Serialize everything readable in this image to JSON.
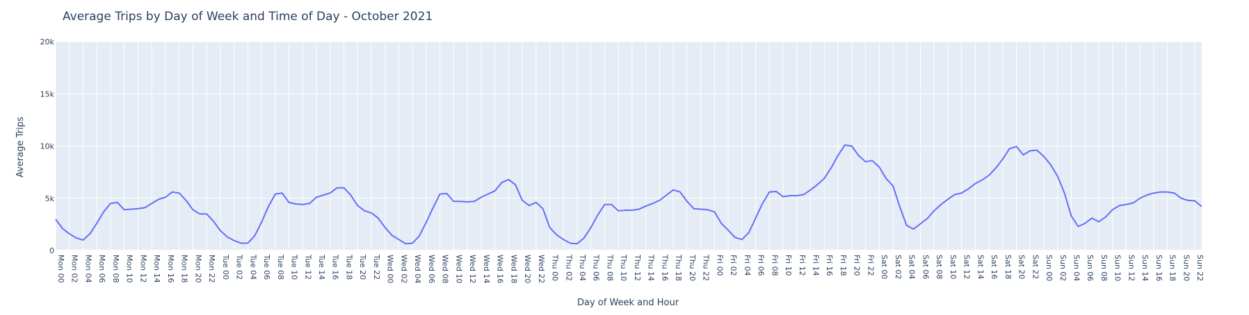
{
  "chart_data": {
    "type": "line",
    "title": "Average Trips by Day of Week and Time of Day - October 2021",
    "xlabel": "Day of Week and Hour",
    "ylabel": "Average Trips",
    "ylim": [
      0,
      20000
    ],
    "y_ticks": [
      {
        "value": 0,
        "label": "0"
      },
      {
        "value": 5000,
        "label": "5k"
      },
      {
        "value": 10000,
        "label": "10k"
      },
      {
        "value": 15000,
        "label": "15k"
      },
      {
        "value": 20000,
        "label": "20k"
      }
    ],
    "grid": true,
    "legend": "none",
    "colors": {
      "line": "#636efa",
      "plot_bg": "#e5ecf6",
      "grid": "#ffffff",
      "text": "#2a3f5f"
    },
    "tick_labels": [
      "Mon 00",
      "Mon 02",
      "Mon 04",
      "Mon 06",
      "Mon 08",
      "Mon 10",
      "Mon 12",
      "Mon 14",
      "Mon 16",
      "Mon 18",
      "Mon 20",
      "Mon 22",
      "Tue 00",
      "Tue 02",
      "Tue 04",
      "Tue 06",
      "Tue 08",
      "Tue 10",
      "Tue 12",
      "Tue 14",
      "Tue 16",
      "Tue 18",
      "Tue 20",
      "Tue 22",
      "Wed 00",
      "Wed 02",
      "Wed 04",
      "Wed 06",
      "Wed 08",
      "Wed 10",
      "Wed 12",
      "Wed 14",
      "Wed 16",
      "Wed 18",
      "Wed 20",
      "Wed 22",
      "Thu 00",
      "Thu 02",
      "Thu 04",
      "Thu 06",
      "Thu 08",
      "Thu 10",
      "Thu 12",
      "Thu 14",
      "Thu 16",
      "Thu 18",
      "Thu 20",
      "Thu 22",
      "Fri 00",
      "Fri 02",
      "Fri 04",
      "Fri 06",
      "Fri 08",
      "Fri 10",
      "Fri 12",
      "Fri 14",
      "Fri 16",
      "Fri 18",
      "Fri 20",
      "Fri 22",
      "Sat 00",
      "Sat 02",
      "Sat 04",
      "Sat 06",
      "Sat 08",
      "Sat 10",
      "Sat 12",
      "Sat 14",
      "Sat 16",
      "Sat 18",
      "Sat 20",
      "Sat 22",
      "Sun 00",
      "Sun 02",
      "Sun 04",
      "Sun 06",
      "Sun 08",
      "Sun 10",
      "Sun 12",
      "Sun 14",
      "Sun 16",
      "Sun 18",
      "Sun 20",
      "Sun 22"
    ],
    "series": [
      {
        "values": [
          3000,
          2100,
          1600,
          1200,
          1000,
          1600,
          2600,
          3700,
          4500,
          4600,
          3900,
          3950,
          4000,
          4100,
          4500,
          4900,
          5100,
          5600,
          5500,
          4800,
          3900,
          3500,
          3500,
          2800,
          1900,
          1300,
          950,
          700,
          700,
          1400,
          2700,
          4200,
          5400,
          5500,
          4600,
          4450,
          4400,
          4500,
          5100,
          5300,
          5500,
          6000,
          6000,
          5300,
          4300,
          3800,
          3600,
          3100,
          2200,
          1450,
          1050,
          650,
          700,
          1400,
          2700,
          4100,
          5400,
          5450,
          4700,
          4700,
          4650,
          4700,
          5100,
          5400,
          5700,
          6500,
          6800,
          6300,
          4800,
          4300,
          4600,
          4000,
          2200,
          1500,
          1050,
          700,
          650,
          1200,
          2200,
          3400,
          4400,
          4400,
          3800,
          3850,
          3850,
          3950,
          4250,
          4500,
          4800,
          5300,
          5800,
          5600,
          4700,
          4000,
          3950,
          3900,
          3700,
          2600,
          1950,
          1250,
          1050,
          1700,
          3100,
          4500,
          5600,
          5650,
          5150,
          5250,
          5250,
          5350,
          5800,
          6300,
          6900,
          7900,
          9100,
          10100,
          10000,
          9100,
          8500,
          8600,
          8000,
          6900,
          6200,
          4200,
          2400,
          2050,
          2550,
          3050,
          3800,
          4400,
          4900,
          5350,
          5500,
          5900,
          6400,
          6750,
          7200,
          7900,
          8750,
          9750,
          9950,
          9150,
          9550,
          9600,
          9000,
          8200,
          7100,
          5500,
          3300,
          2300,
          2600,
          3100,
          2750,
          3200,
          3900,
          4300,
          4400,
          4550,
          5000,
          5300,
          5500,
          5600,
          5600,
          5500,
          5000,
          4800,
          4750,
          4200
        ]
      }
    ]
  }
}
